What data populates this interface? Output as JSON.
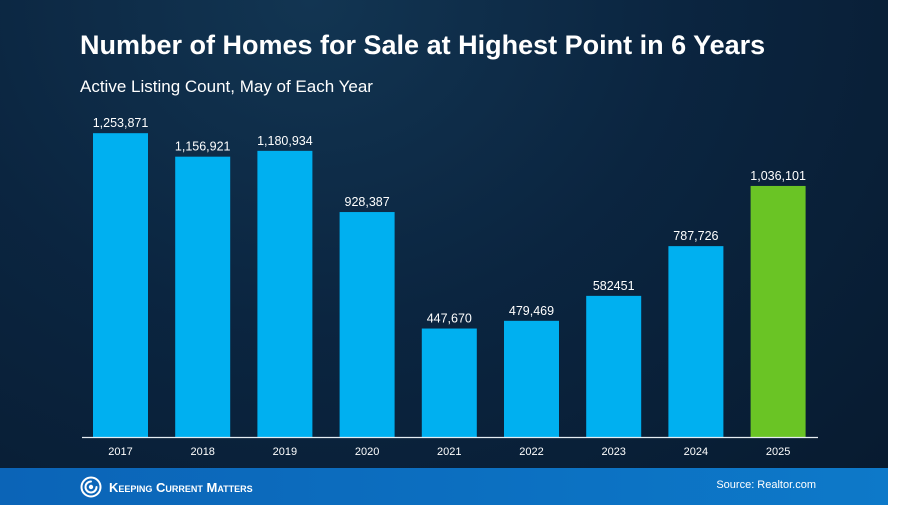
{
  "chart_data": {
    "type": "bar",
    "title": "Number of Homes for Sale at Highest Point in 6 Years",
    "subtitle": "Active Listing Count, May of Each Year",
    "categories": [
      "2017",
      "2018",
      "2019",
      "2020",
      "2021",
      "2022",
      "2023",
      "2024",
      "2025"
    ],
    "values": [
      1253871,
      1156921,
      1180934,
      928387,
      447670,
      479469,
      582451,
      787726,
      1036101
    ],
    "value_labels": [
      "1,253,871",
      "1,156,921",
      "1,180,934",
      "928,387",
      "447,670",
      "479,469",
      "582451",
      "787,726",
      "1,036,101"
    ],
    "ylim": [
      0,
      1300000
    ],
    "grid": false,
    "colors": {
      "default": "#00b0f0",
      "highlight": "#6ac425",
      "highlight_category": "2025"
    }
  },
  "footer": {
    "brand": "Keeping Current Matters",
    "logo_icon": "kcm-swirl-icon",
    "source": "Source: Realtor.com"
  }
}
